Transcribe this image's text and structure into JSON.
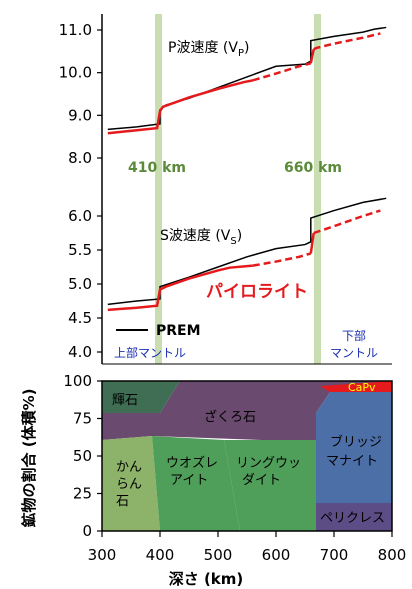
{
  "chart_data": [
    {
      "type": "line",
      "title": "P波速度 (V",
      "title_sub": "P",
      "title_end": ")",
      "yticks": [
        "11.0",
        "10.0",
        "9.0",
        "8.0"
      ],
      "ylim": [
        7.6,
        11.2
      ],
      "xlim": [
        300,
        800
      ],
      "series": [
        {
          "name": "PREM",
          "color": "#000000",
          "x": [
            310,
            360,
            400,
            400,
            410,
            450,
            500,
            550,
            600,
            650,
            660,
            660,
            700,
            750,
            770,
            790
          ],
          "y": [
            8.67,
            8.73,
            8.8,
            9.13,
            9.24,
            9.4,
            9.65,
            9.9,
            10.15,
            10.2,
            10.27,
            10.75,
            10.85,
            10.95,
            11.02,
            11.06
          ]
        },
        {
          "name": "パイロライト",
          "color": "#e41a1c",
          "x": [
            310,
            360,
            395,
            400,
            405,
            450,
            500,
            545,
            560,
            600,
            640,
            660,
            665,
            670,
            700,
            750,
            780
          ],
          "y": [
            8.58,
            8.65,
            8.7,
            9.1,
            9.2,
            9.42,
            9.62,
            9.78,
            9.82,
            9.98,
            10.15,
            10.22,
            10.55,
            10.58,
            10.68,
            10.82,
            10.92
          ],
          "dash_from_x": 560
        }
      ]
    },
    {
      "type": "line",
      "title": "S波速度 (V",
      "title_sub": "S",
      "title_end": ")",
      "yticks": [
        "6.0",
        "5.5",
        "5.0",
        "4.5",
        "4.0"
      ],
      "ylim": [
        3.9,
        6.4
      ],
      "xlim": [
        300,
        800
      ],
      "series": [
        {
          "name": "PREM",
          "color": "#000000",
          "x": [
            310,
            360,
            400,
            400,
            450,
            500,
            550,
            600,
            650,
            660,
            660,
            700,
            750,
            790
          ],
          "y": [
            4.7,
            4.75,
            4.78,
            4.96,
            5.1,
            5.25,
            5.4,
            5.52,
            5.58,
            5.62,
            5.97,
            6.08,
            6.2,
            6.26
          ]
        },
        {
          "name": "パイロライト",
          "color": "#e41a1c",
          "x": [
            310,
            360,
            395,
            400,
            410,
            450,
            500,
            520,
            560,
            600,
            640,
            660,
            665,
            700,
            750,
            780
          ],
          "y": [
            4.62,
            4.65,
            4.68,
            4.92,
            4.96,
            5.08,
            5.2,
            5.24,
            5.27,
            5.33,
            5.4,
            5.45,
            5.75,
            5.85,
            6.0,
            6.08
          ],
          "dash_from_x": 560
        }
      ]
    },
    {
      "type": "area",
      "xlabel": "深さ (km)",
      "ylabel": "鉱物の割合 (体積%)",
      "xticks": [
        "300",
        "400",
        "500",
        "600",
        "700",
        "800"
      ],
      "yticks": [
        "100",
        "75",
        "50",
        "25",
        "0"
      ],
      "xlim": [
        300,
        800
      ],
      "ylim": [
        0,
        100
      ]
    }
  ],
  "annotations": {
    "d410": "410 km",
    "d660": "660 km",
    "pyrolite_label": "パイロライト",
    "prem_label": "PREM",
    "upper_mantle": "上部マントル",
    "lower_mantle_1": "下部",
    "lower_mantle_2": "マントル"
  },
  "minerals": {
    "pyroxene": "輝石",
    "garnet": "ざくろ石",
    "capv": "CaPv",
    "olivine_1": "かん",
    "olivine_2": "らん",
    "olivine_3": "石",
    "wadsleyite_1": "ウオズレ",
    "wadsleyite_2": "アイト",
    "ringwoodite_1": "リングウッ",
    "ringwoodite_2": "ダイト",
    "bridgmanite_1": "ブリッジ",
    "bridgmanite_2": "マナイト",
    "periclase": "ペリクレス"
  },
  "colors": {
    "olivine": "#8db36a",
    "wadsleyite": "#4f9e5a",
    "ringwoodite": "#4f9e5a",
    "pyroxene": "#3f6e55",
    "garnet": "#6a4a6f",
    "capv": "#e41a1c",
    "bridgmanite": "#4d6fa8",
    "periclase": "#5c4d86",
    "band": "#c9deb0"
  }
}
